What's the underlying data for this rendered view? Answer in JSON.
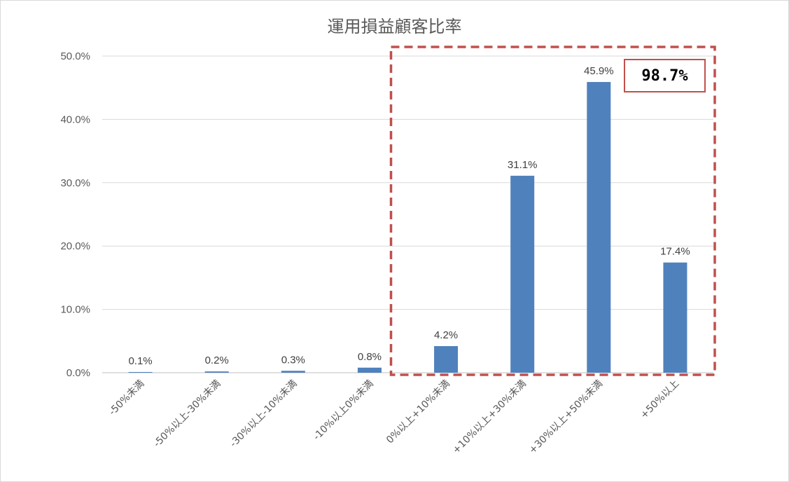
{
  "chart_data": {
    "type": "bar",
    "title": "運用損益顧客比率",
    "categories": [
      "-50%未満",
      "-50%以上-30%未満",
      "-30%以上-10%未満",
      "-10%以上0%未満",
      "0%以上+10%未満",
      "+10%以上+30%未満",
      "+30%以上+50%未満",
      "+50%以上"
    ],
    "values": [
      0.1,
      0.2,
      0.3,
      0.8,
      4.2,
      31.1,
      45.9,
      17.4
    ],
    "data_labels": [
      "0.1%",
      "0.2%",
      "0.3%",
      "0.8%",
      "4.2%",
      "31.1%",
      "45.9%",
      "17.4%"
    ],
    "yticks": [
      "0.0%",
      "10.0%",
      "20.0%",
      "30.0%",
      "40.0%",
      "50.0%"
    ],
    "ylim": [
      0,
      50
    ],
    "grid": true,
    "legend": "none",
    "bar_color": "#4f81bd",
    "highlight": {
      "label": "98.7%",
      "first_category_index": 4,
      "last_category_index": 7,
      "border_color": "#c0504d"
    }
  }
}
